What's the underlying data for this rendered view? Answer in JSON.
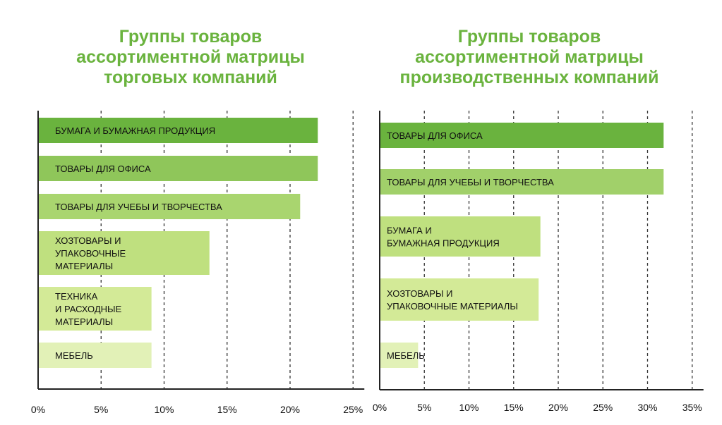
{
  "colors": {
    "title": "#6ab33e",
    "axis": "#222222",
    "grid": "#333333"
  },
  "chart_data": [
    {
      "type": "bar",
      "orientation": "horizontal",
      "title": "Группы товаров\nассортиментной матрицы\nторговых компаний",
      "categories": [
        "БУМАГА И БУМАЖНАЯ ПРОДУКЦИЯ",
        "ТОВАРЫ ДЛЯ ОФИСА",
        "ТОВАРЫ ДЛЯ УЧЕБЫ И ТВОРЧЕСТВА",
        "ХОЗТОВАРЫ И\nУПАКОВОЧНЫЕ\nМАТЕРИАЛЫ",
        "ТЕХНИКА\nИ РАСХОДНЫЕ\nМАТЕРИАЛЫ",
        "МЕБЕЛЬ"
      ],
      "values": [
        22.2,
        22.2,
        20.8,
        13.6,
        9.0,
        9.0
      ],
      "bar_colors": [
        "#6ab33e",
        "#8fc65a",
        "#a9d56f",
        "#bfe07f",
        "#d3ea97",
        "#e2f1b7"
      ],
      "xlim": [
        0,
        25
      ],
      "x_ticks": [
        "0%",
        "5%",
        "10%",
        "15%",
        "20%",
        "25%"
      ],
      "grid": true
    },
    {
      "type": "bar",
      "orientation": "horizontal",
      "title": "Группы товаров\nассортиментной матрицы\nпроизводственных компаний",
      "categories": [
        "ТОВАРЫ ДЛЯ ОФИСА",
        "ТОВАРЫ ДЛЯ УЧЕБЫ И ТВОРЧЕСТВА",
        "БУМАГА И\nБУМАЖНАЯ ПРОДУКЦИЯ",
        "ХОЗТОВАРЫ И\nУПАКОВОЧНЫЕ МАТЕРИАЛЫ",
        "МЕБЕЛЬ"
      ],
      "values": [
        31.8,
        31.8,
        18.0,
        17.8,
        4.3
      ],
      "bar_colors": [
        "#6ab33e",
        "#a1d06a",
        "#bfe07f",
        "#d3ea97",
        "#e2f1b7"
      ],
      "xlim": [
        0,
        35
      ],
      "x_ticks": [
        "0%",
        "5%",
        "10%",
        "15%",
        "20%",
        "25%",
        "30%",
        "35%"
      ],
      "grid": true
    }
  ]
}
